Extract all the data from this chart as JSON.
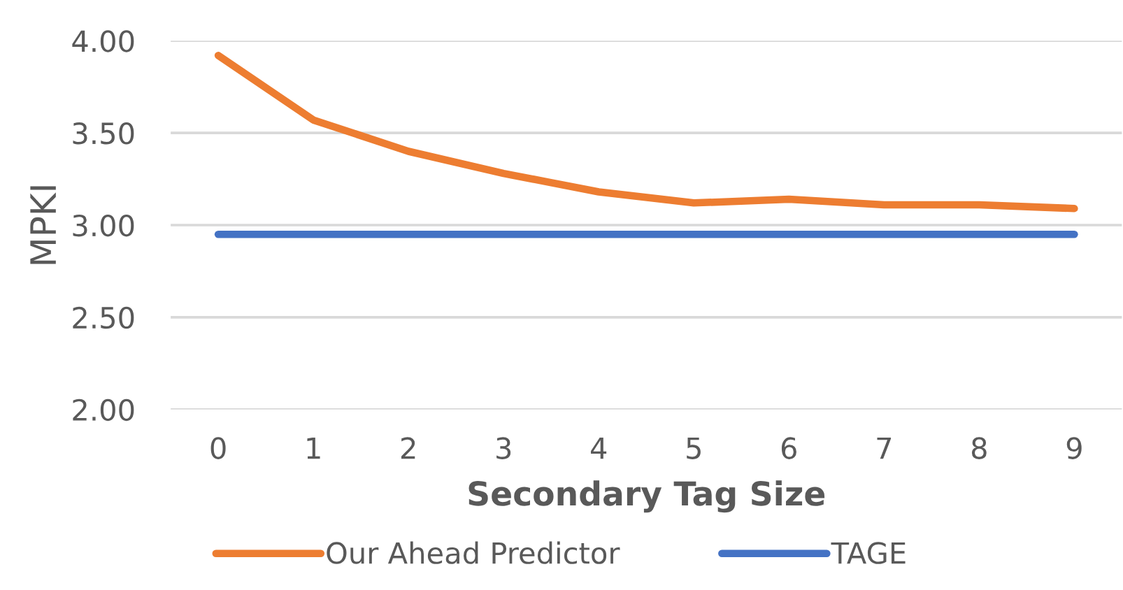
{
  "chart_data": {
    "type": "line",
    "xlabel": "Secondary Tag Size",
    "ylabel": "MPKI",
    "categories": [
      "0",
      "1",
      "2",
      "3",
      "4",
      "5",
      "6",
      "7",
      "8",
      "9"
    ],
    "series": [
      {
        "name": "Our Ahead Predictor",
        "color": "#ed7d31",
        "values": [
          3.92,
          3.57,
          3.4,
          3.28,
          3.18,
          3.12,
          3.14,
          3.11,
          3.11,
          3.09
        ]
      },
      {
        "name": "TAGE",
        "color": "#4472c4",
        "values": [
          2.95,
          2.95,
          2.95,
          2.95,
          2.95,
          2.95,
          2.95,
          2.95,
          2.95,
          2.95
        ]
      }
    ],
    "ylim": [
      2.0,
      4.0
    ],
    "yticks": [
      {
        "value": 2.0,
        "label": "2.00"
      },
      {
        "value": 2.5,
        "label": "2.50"
      },
      {
        "value": 3.0,
        "label": "3.00"
      },
      {
        "value": 3.5,
        "label": "3.50"
      },
      {
        "value": 4.0,
        "label": "4.00"
      }
    ],
    "grid": "y",
    "legend": "bottom",
    "marker": "none",
    "line_style": "solid"
  }
}
